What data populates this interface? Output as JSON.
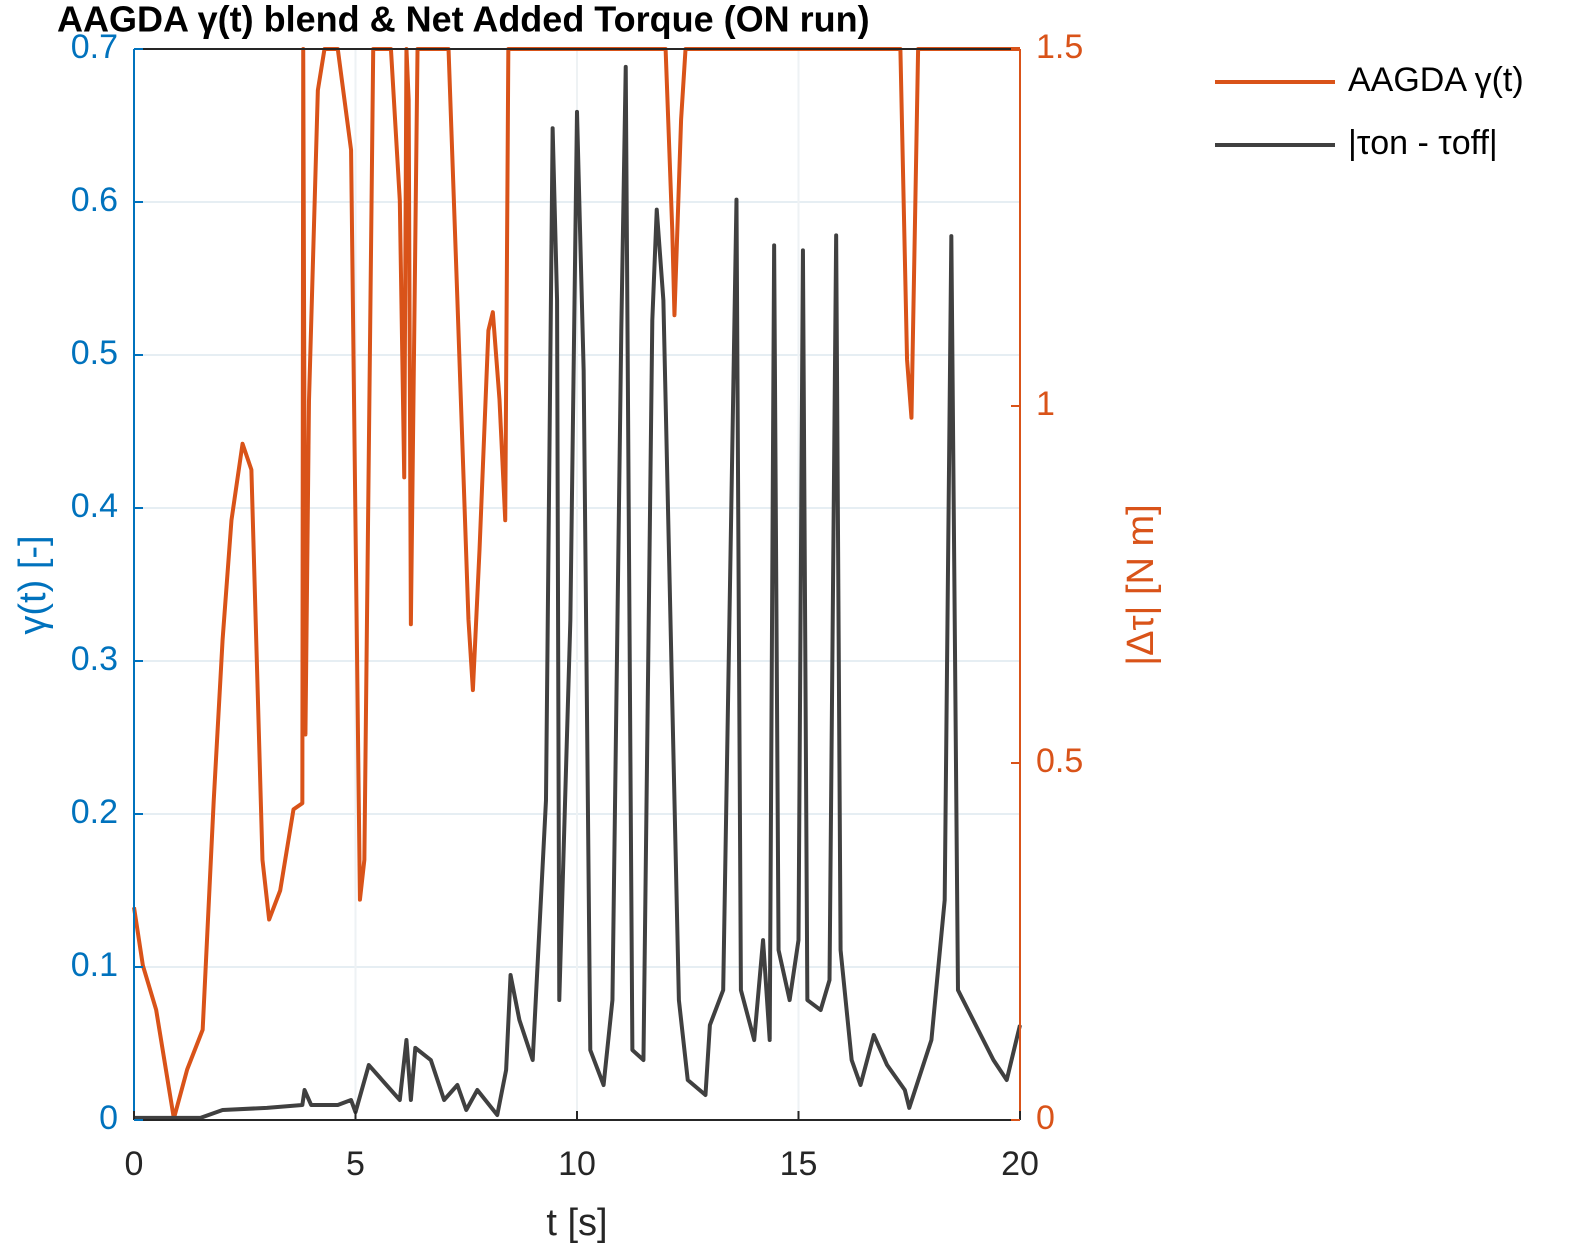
{
  "chart_data": {
    "type": "line",
    "title": "AAGDA γ(t) blend & Net Added Torque (ON run)",
    "x_label": "t [s]",
    "y_label": "γ(t) [-]",
    "y2_label": "|Δτ| [N m]",
    "xlim": [
      0,
      20
    ],
    "xticks": [
      0,
      5,
      10,
      15,
      20
    ],
    "ylim": [
      0,
      0.7
    ],
    "yticks": [
      0,
      0.1,
      0.2,
      0.3,
      0.4,
      0.5,
      0.6,
      0.7
    ],
    "y2lim": [
      0,
      1.5
    ],
    "y2ticks": [
      0,
      0.5,
      1,
      1.5
    ],
    "grid": true,
    "legend": "outside-right",
    "y_color": "#0072BD",
    "y2_color": "#D95319",
    "series": [
      {
        "name": "AAGDA γ(t)",
        "color": "#D95319",
        "axis": "y",
        "x": [
          0,
          0.2,
          0.5,
          0.9,
          1.2,
          1.55,
          1.8,
          2.0,
          2.2,
          2.45,
          2.65,
          2.9,
          3.05,
          3.3,
          3.6,
          3.8,
          3.82,
          3.87,
          3.95,
          4.15,
          4.3,
          4.6,
          4.9,
          5.1,
          5.2,
          5.4,
          5.8,
          6.0,
          6.1,
          6.15,
          6.2,
          6.25,
          6.4,
          7.1,
          7.3,
          7.55,
          7.65,
          7.8,
          8.0,
          8.1,
          8.25,
          8.38,
          8.45,
          12.0,
          12.15,
          12.2,
          12.35,
          12.45,
          17.3,
          17.45,
          17.55,
          17.7,
          20
        ],
        "values": [
          0.139,
          0.101,
          0.072,
          0.001,
          0.033,
          0.059,
          0.209,
          0.314,
          0.392,
          0.442,
          0.425,
          0.17,
          0.131,
          0.15,
          0.203,
          0.207,
          0.7,
          0.252,
          0.47,
          0.673,
          0.7,
          0.7,
          0.634,
          0.144,
          0.17,
          0.7,
          0.7,
          0.601,
          0.42,
          0.7,
          0.667,
          0.324,
          0.7,
          0.7,
          0.536,
          0.327,
          0.281,
          0.373,
          0.516,
          0.528,
          0.471,
          0.392,
          0.7,
          0.7,
          0.582,
          0.526,
          0.654,
          0.7,
          0.7,
          0.497,
          0.459,
          0.7,
          0.7
        ]
      },
      {
        "name": "|τon - τoff|",
        "color": "#404040",
        "axis": "y2",
        "x": [
          0,
          1.5,
          2.0,
          3.0,
          3.8,
          3.85,
          4.0,
          4.6,
          4.9,
          5.0,
          5.3,
          5.6,
          6.0,
          6.15,
          6.25,
          6.35,
          6.7,
          7.0,
          7.3,
          7.5,
          7.75,
          8.2,
          8.4,
          8.5,
          8.7,
          9.0,
          9.3,
          9.45,
          9.55,
          9.6,
          9.85,
          10.0,
          10.15,
          10.3,
          10.6,
          10.8,
          11.0,
          11.1,
          11.25,
          11.5,
          11.7,
          11.8,
          11.95,
          12.3,
          12.5,
          12.9,
          13.0,
          13.3,
          13.6,
          13.7,
          14.0,
          14.2,
          14.35,
          14.45,
          14.55,
          14.8,
          15.0,
          15.1,
          15.2,
          15.5,
          15.7,
          15.85,
          15.95,
          16.2,
          16.4,
          16.7,
          17.0,
          17.4,
          17.5,
          18.0,
          18.3,
          18.45,
          18.6,
          19.0,
          19.4,
          19.7,
          20
        ],
        "values": [
          0.003,
          0.003,
          0.014,
          0.017,
          0.021,
          0.042,
          0.021,
          0.021,
          0.028,
          0.011,
          0.077,
          0.056,
          0.028,
          0.112,
          0.028,
          0.101,
          0.084,
          0.028,
          0.049,
          0.014,
          0.042,
          0.007,
          0.07,
          0.203,
          0.14,
          0.084,
          0.448,
          1.389,
          1.148,
          0.168,
          0.7,
          1.412,
          1.05,
          0.098,
          0.049,
          0.168,
          1.106,
          1.475,
          0.098,
          0.084,
          1.12,
          1.275,
          1.148,
          0.168,
          0.056,
          0.035,
          0.133,
          0.182,
          1.289,
          0.182,
          0.112,
          0.252,
          0.112,
          1.225,
          0.238,
          0.168,
          0.252,
          1.218,
          0.168,
          0.154,
          0.196,
          1.239,
          0.238,
          0.084,
          0.049,
          0.119,
          0.077,
          0.042,
          0.017,
          0.112,
          0.308,
          1.238,
          0.182,
          0.133,
          0.084,
          0.056,
          0.133
        ]
      }
    ]
  }
}
